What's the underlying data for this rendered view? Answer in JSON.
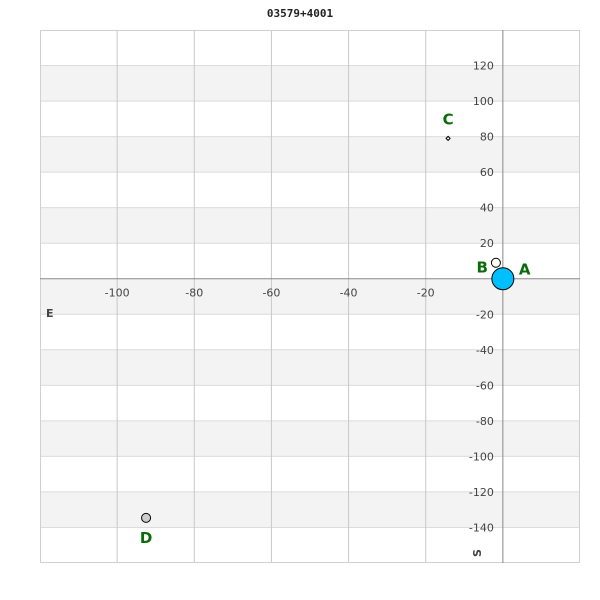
{
  "chart_data": {
    "type": "scatter",
    "title": "03579+4001",
    "xlabel": "E",
    "ylabel": "S",
    "xlim": [
      -120,
      20
    ],
    "ylim": [
      -160,
      140
    ],
    "x_ticks": [
      -100,
      -80,
      -60,
      -40,
      -20
    ],
    "y_ticks": [
      120,
      100,
      80,
      60,
      40,
      20,
      -20,
      -40,
      -60,
      -80,
      -100,
      -120,
      -140
    ],
    "grid": true,
    "points": [
      {
        "label": "A",
        "x": 0,
        "y": 0,
        "color": "#00bfff",
        "size": "large"
      },
      {
        "label": "B",
        "x": -1.8,
        "y": 9,
        "color": "#fffff0",
        "size": "small"
      },
      {
        "label": "C",
        "x": -14.2,
        "y": 79,
        "color": "#ffffff",
        "size": "tiny"
      },
      {
        "label": "D",
        "x": -92.5,
        "y": -134.6,
        "color": "#cccccc",
        "size": "small"
      }
    ],
    "label_color": "#0a6b0a"
  }
}
